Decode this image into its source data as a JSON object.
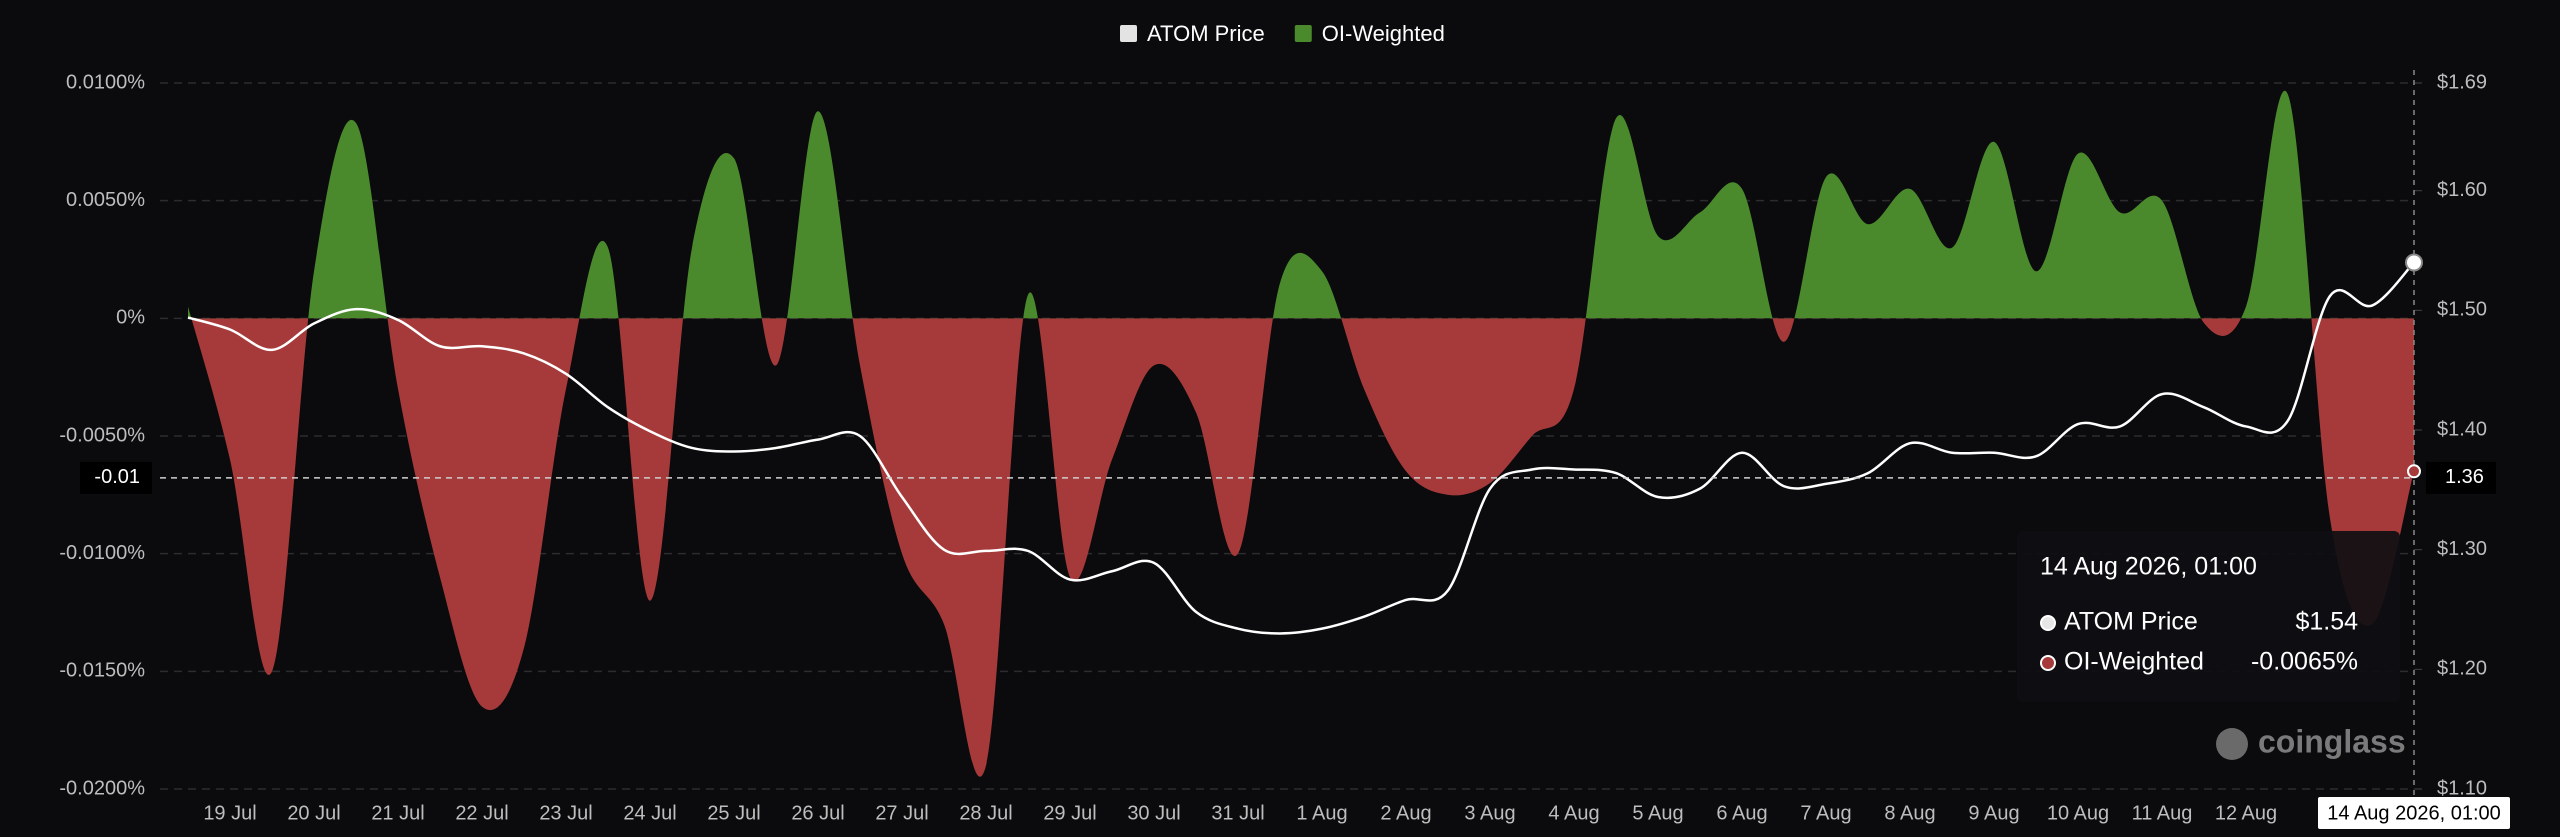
{
  "chart_data": {
    "type": "funding-area-line",
    "legend": "top",
    "grid": true,
    "categories": [
      null,
      "19 Jul",
      null,
      "20 Jul",
      null,
      "21 Jul",
      null,
      "22 Jul",
      null,
      "23 Jul",
      null,
      "24 Jul",
      null,
      "25 Jul",
      null,
      "26 Jul",
      null,
      "27 Jul",
      null,
      "28 Jul",
      null,
      "29 Jul",
      null,
      "30 Jul",
      null,
      "31 Jul",
      null,
      "1 Aug",
      null,
      "2 Aug",
      null,
      "3 Aug",
      null,
      "4 Aug",
      null,
      "5 Aug",
      null,
      "6 Aug",
      null,
      "7 Aug",
      null,
      "8 Aug",
      null,
      "9 Aug",
      null,
      "10 Aug",
      null,
      "11 Aug",
      null,
      "12 Aug",
      null,
      null,
      null,
      "14 Aug 2026, 01:00"
    ],
    "series": [
      {
        "name": "ATOM Price",
        "color": "#e3e3e3",
        "axis": "y2",
        "values": [
          1.494,
          1.484,
          1.467,
          1.489,
          1.501,
          1.492,
          1.47,
          1.47,
          1.464,
          1.447,
          1.419,
          1.399,
          1.385,
          1.382,
          1.385,
          1.392,
          1.395,
          1.344,
          1.3,
          1.299,
          1.299,
          1.275,
          1.282,
          1.289,
          1.248,
          1.234,
          1.23,
          1.234,
          1.244,
          1.258,
          1.266,
          1.351,
          1.367,
          1.367,
          1.364,
          1.344,
          1.351,
          1.381,
          1.353,
          1.355,
          1.364,
          1.389,
          1.381,
          1.381,
          1.378,
          1.405,
          1.403,
          1.43,
          1.419,
          1.403,
          1.408,
          1.512,
          1.504,
          1.54
        ]
      },
      {
        "name": "OI-Weighted",
        "color": "#4a8a2c",
        "negative_color": "#a63a3a",
        "values": [
          0.0005,
          -0.006,
          -0.015,
          0.002,
          0.0083,
          -0.003,
          -0.011,
          -0.0165,
          -0.014,
          -0.003,
          0.003,
          -0.012,
          0.003,
          0.0068,
          -0.002,
          0.0088,
          -0.002,
          -0.01,
          -0.013,
          -0.019,
          0.001,
          -0.011,
          -0.006,
          -0.002,
          -0.004,
          -0.01,
          0.0015,
          0.002,
          -0.003,
          -0.0065,
          -0.0075,
          -0.007,
          -0.005,
          -0.003,
          0.0085,
          0.0035,
          0.0045,
          0.0055,
          -0.001,
          0.006,
          0.004,
          0.0055,
          0.003,
          0.0075,
          0.002,
          0.007,
          0.0045,
          0.005,
          -0.0002,
          0.0005,
          0.0095,
          -0.0085,
          -0.013,
          -0.0065
        ]
      }
    ],
    "ylim": [
      -0.02,
      0.01
    ],
    "yticks": [
      {
        "value": 0.01,
        "label": "0.0100%"
      },
      {
        "value": 0.005,
        "label": "0.0050%"
      },
      {
        "value": 0,
        "label": "0%"
      },
      {
        "value": -0.005,
        "label": "-0.0050%"
      },
      {
        "value": -0.01,
        "label": "-0.0100%"
      },
      {
        "value": -0.015,
        "label": "-0.0150%"
      },
      {
        "value": -0.02,
        "label": "-0.0200%"
      }
    ],
    "y2lim": [
      1.1,
      1.69
    ],
    "y2ticks": [
      {
        "value": 1.69,
        "label": "$1.69"
      },
      {
        "value": 1.6,
        "label": "$1.60"
      },
      {
        "value": 1.5,
        "label": "$1.50"
      },
      {
        "value": 1.4,
        "label": "$1.40"
      },
      {
        "value": 1.3,
        "label": "$1.30"
      },
      {
        "value": 1.2,
        "label": "$1.20"
      },
      {
        "value": 1.1,
        "label": "$1.10"
      }
    ],
    "crosshair": {
      "y_label": "-0.01",
      "y2": 1.36
    },
    "tooltip": {
      "value_labels": [
        "$1.54",
        "-0.0065%"
      ]
    },
    "watermark": "coinglass"
  }
}
